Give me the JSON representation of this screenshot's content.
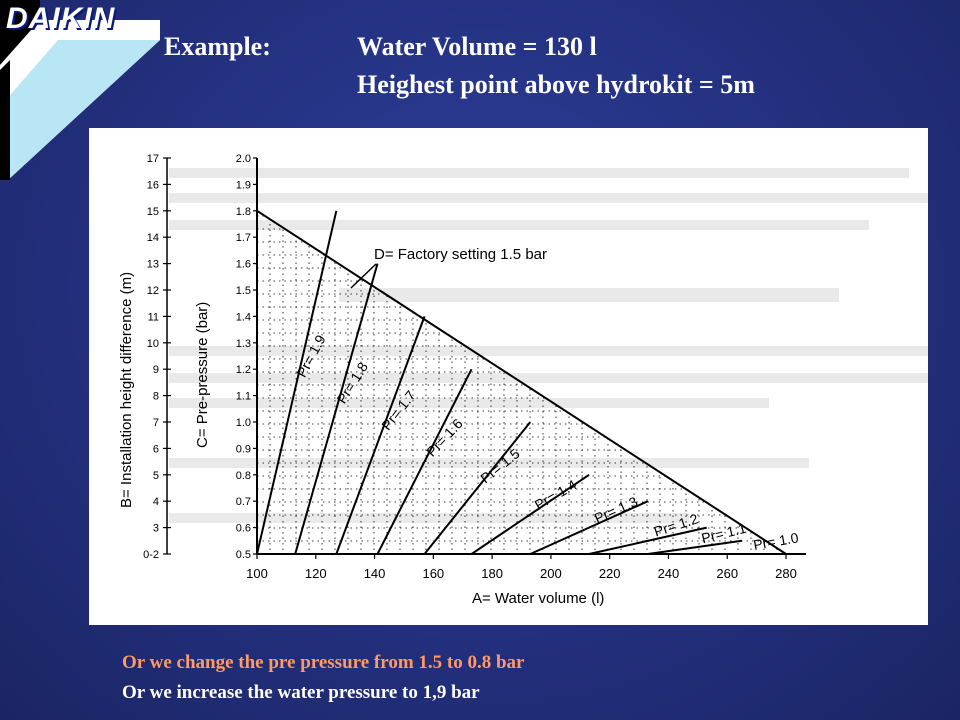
{
  "brand": {
    "logo_text": "DAIKIN"
  },
  "header": {
    "label": "Example:",
    "line1": "Water Volume = 130 l",
    "line2": "Heighest point above hydrokit = 5m"
  },
  "chart": {
    "ylabel_left": "B= Installation height difference (m)",
    "ylabel_right": "C= Pre-pressure (bar)",
    "xlabel": "A= Water volume (l)",
    "annotation": "D= Factory setting 1.5 bar",
    "left_ticks": [
      "17",
      "16",
      "15",
      "14",
      "13",
      "12",
      "11",
      "10",
      "9",
      "8",
      "7",
      "6",
      "5",
      "4",
      "3",
      "0-2"
    ],
    "right_ticks": [
      "2.0",
      "1.9",
      "1.8",
      "1.7",
      "1.6",
      "1.5",
      "1.4",
      "1.3",
      "1.2",
      "1.1",
      "1.0",
      "0.9",
      "0.8",
      "0.7",
      "0.6",
      "0.5"
    ],
    "x_ticks": [
      "100",
      "120",
      "140",
      "160",
      "180",
      "200",
      "220",
      "240",
      "260",
      "280"
    ],
    "curve_labels": [
      "Pr= 1.9",
      "Pr= 1.8",
      "Pr= 1.7",
      "Pr= 1.6",
      "Pr= 1.5",
      "Pr= 1.4",
      "Pr= 1.3",
      "Pr= 1.2",
      "Pr= 1.1",
      "Pr= 1.0"
    ]
  },
  "chart_data": {
    "type": "line",
    "xlabel": "A= Water volume (l)",
    "ylabel": "C= Pre-pressure (bar)",
    "xlim": [
      100,
      280
    ],
    "ylim": [
      0.5,
      2.0
    ],
    "series": [
      {
        "name": "Pr= 1.9",
        "x": [
          100,
          127
        ],
        "y": [
          0.5,
          1.8
        ]
      },
      {
        "name": "Pr= 1.8",
        "x": [
          113,
          141
        ],
        "y": [
          0.5,
          1.6
        ]
      },
      {
        "name": "Pr= 1.7",
        "x": [
          127,
          157
        ],
        "y": [
          0.5,
          1.4
        ]
      },
      {
        "name": "Pr= 1.6",
        "x": [
          141,
          173
        ],
        "y": [
          0.5,
          1.2
        ]
      },
      {
        "name": "Pr= 1.5",
        "x": [
          157,
          193
        ],
        "y": [
          0.5,
          1.0
        ]
      },
      {
        "name": "Pr= 1.4",
        "x": [
          173,
          213
        ],
        "y": [
          0.5,
          0.8
        ]
      },
      {
        "name": "Pr= 1.3",
        "x": [
          193,
          233
        ],
        "y": [
          0.5,
          0.7
        ]
      },
      {
        "name": "Pr= 1.2",
        "x": [
          213,
          253
        ],
        "y": [
          0.5,
          0.6
        ]
      },
      {
        "name": "Pr= 1.1",
        "x": [
          233,
          265
        ],
        "y": [
          0.5,
          0.55
        ]
      },
      {
        "name": "Pr= 1.0",
        "x": [
          253,
          280
        ],
        "y": [
          0.5,
          0.5
        ]
      }
    ]
  },
  "notes": {
    "line1": "Or we change the pre pressure from  1.5 to 0.8 bar",
    "line2": "Or we increase the water pressure to 1,9 bar"
  },
  "colors": {
    "background": "#23307e",
    "note_orange": "#ff9966",
    "text_white": "#ffffff"
  }
}
